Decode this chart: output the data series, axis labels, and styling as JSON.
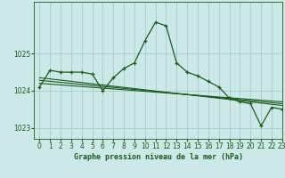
{
  "title": "Graphe pression niveau de la mer (hPa)",
  "bg_color": "#cce8e8",
  "grid_color": "#aad0d0",
  "line_color": "#1a5c1a",
  "marker_color": "#1a5c1a",
  "xlim": [
    -0.5,
    23
  ],
  "ylim": [
    1022.7,
    1026.4
  ],
  "yticks": [
    1023,
    1024,
    1025
  ],
  "xticks": [
    0,
    1,
    2,
    3,
    4,
    5,
    6,
    7,
    8,
    9,
    10,
    11,
    12,
    13,
    14,
    15,
    16,
    17,
    18,
    19,
    20,
    21,
    22,
    23
  ],
  "series1_x": [
    0,
    1,
    2,
    3,
    4,
    5,
    6,
    7,
    8,
    9,
    10,
    11,
    12,
    13,
    14,
    15,
    16,
    17,
    18,
    19,
    20,
    21,
    22,
    23
  ],
  "series1_y": [
    1024.1,
    1024.55,
    1024.5,
    1024.5,
    1024.5,
    1024.45,
    1024.0,
    1024.35,
    1024.6,
    1024.75,
    1025.35,
    1025.85,
    1025.75,
    1024.75,
    1024.5,
    1024.4,
    1024.25,
    1024.1,
    1023.8,
    1023.7,
    1023.65,
    1023.05,
    1023.55,
    1023.5
  ],
  "series2_x": [
    0,
    23
  ],
  "series2_y": [
    1024.35,
    1023.6
  ],
  "series3_x": [
    0,
    23
  ],
  "series3_y": [
    1024.2,
    1023.7
  ],
  "series4_x": [
    0,
    23
  ],
  "series4_y": [
    1024.28,
    1023.65
  ]
}
